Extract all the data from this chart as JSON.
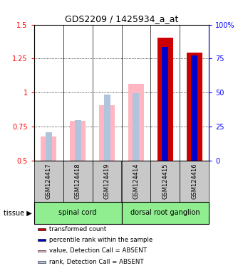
{
  "title": "GDS2209 / 1425934_a_at",
  "samples": [
    "GSM124417",
    "GSM124418",
    "GSM124419",
    "GSM124414",
    "GSM124415",
    "GSM124416"
  ],
  "absent": [
    true,
    true,
    true,
    true,
    false,
    false
  ],
  "value_absent": [
    0.675,
    0.79,
    0.905,
    1.065,
    null,
    null
  ],
  "rank_absent_y": [
    0.71,
    0.795,
    0.985,
    0.995,
    null,
    null
  ],
  "value_present": [
    null,
    null,
    null,
    null,
    1.405,
    1.295
  ],
  "rank_present_y": [
    null,
    null,
    null,
    null,
    1.335,
    1.275
  ],
  "ylim": [
    0.5,
    1.5
  ],
  "y2lim": [
    0,
    100
  ],
  "yticks": [
    0.5,
    0.75,
    1.0,
    1.25,
    1.5
  ],
  "ytick_labels": [
    "0.5",
    "0.75",
    "1",
    "1.25",
    "1.5"
  ],
  "y2ticks": [
    0,
    25,
    50,
    75,
    100
  ],
  "y2tick_labels": [
    "0",
    "25",
    "50",
    "75",
    "100%"
  ],
  "color_value_absent": "#FFB6C1",
  "color_rank_absent": "#B0C4DE",
  "color_value_present": "#CC0000",
  "color_rank_present": "#0000CC",
  "bg_label": "#C8C8C8",
  "tissue_color": "#90EE90",
  "tissue_color_darker": "#44CC44"
}
